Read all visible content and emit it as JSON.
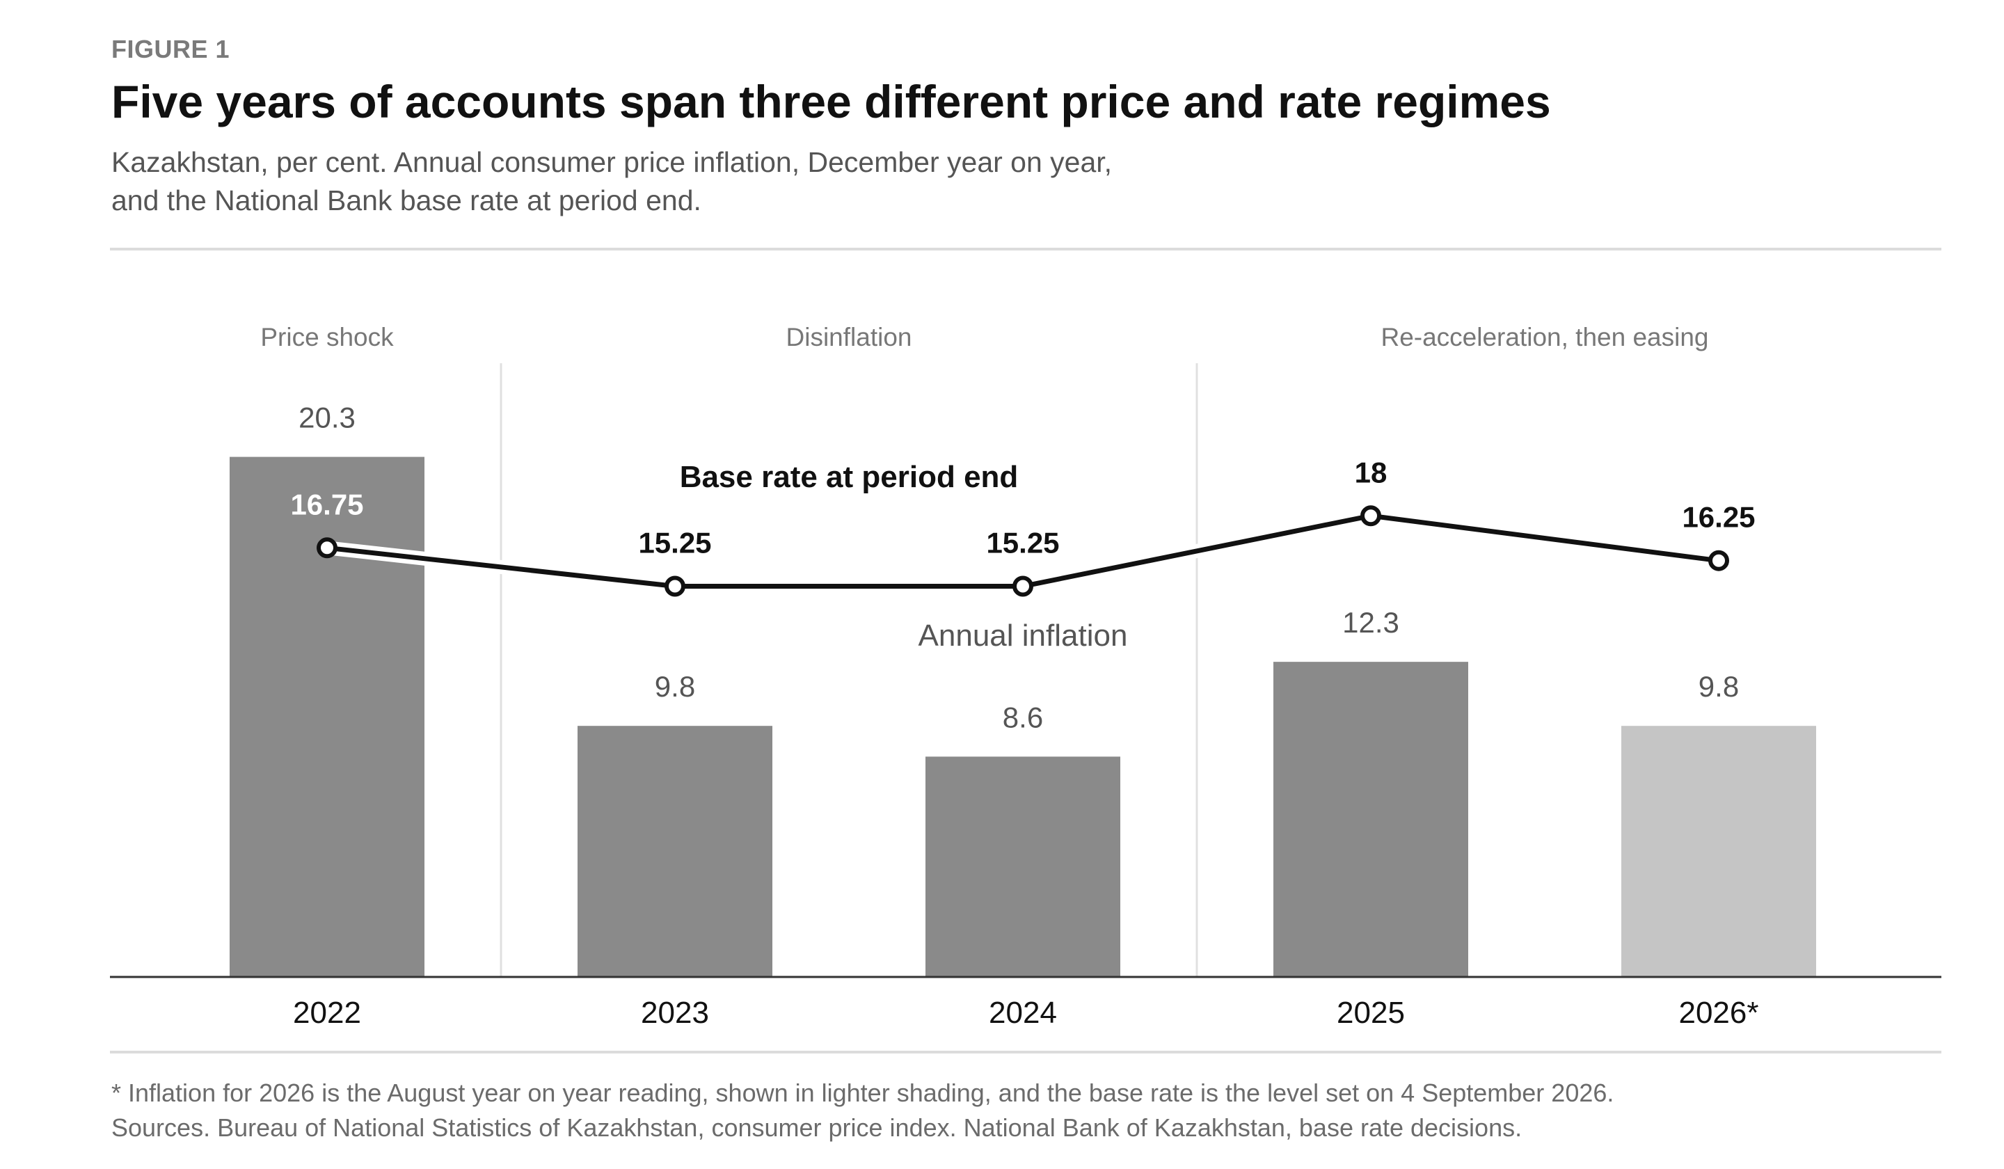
{
  "figure_label": "FIGURE 1",
  "title": "Five years of accounts span three different price and rate regimes",
  "subtitle_lines": [
    "Kazakhstan, per cent. Annual consumer price inflation, December year on year,",
    "and the National Bank base rate at period end."
  ],
  "chart_data": {
    "type": "bar",
    "categories": [
      "2022",
      "2023",
      "2024",
      "2025",
      "2026*"
    ],
    "series": [
      {
        "name": "Annual inflation",
        "type": "bar",
        "values": [
          20.3,
          9.8,
          8.6,
          12.3,
          9.8
        ],
        "value_labels": [
          "20.3",
          "9.8",
          "8.6",
          "12.3",
          "9.8"
        ],
        "colors": [
          "#8a8a8a",
          "#8a8a8a",
          "#8a8a8a",
          "#8a8a8a",
          "#c5c5c5"
        ]
      },
      {
        "name": "Base rate at period end",
        "type": "line",
        "values": [
          16.75,
          15.25,
          15.25,
          18,
          16.25
        ],
        "value_labels": [
          "16.75",
          "15.25",
          "15.25",
          "18",
          "16.25"
        ],
        "color": "#111111"
      }
    ],
    "regimes": [
      {
        "label": "Price shock",
        "categories": [
          "2022"
        ]
      },
      {
        "label": "Disinflation",
        "categories": [
          "2023",
          "2024"
        ]
      },
      {
        "label": "Re-acceleration, then easing",
        "categories": [
          "2025",
          "2026*"
        ]
      }
    ],
    "ylim": [
      0,
      22
    ],
    "grid": false,
    "legend": "direct labels"
  },
  "notes": [
    "* Inflation for 2026 is the August year on year reading, shown in lighter shading, and the base rate is the level set on 4 September 2026.",
    "Sources. Bureau of National Statistics of Kazakhstan, consumer price index. National Bank of Kazakhstan, base rate decisions."
  ]
}
